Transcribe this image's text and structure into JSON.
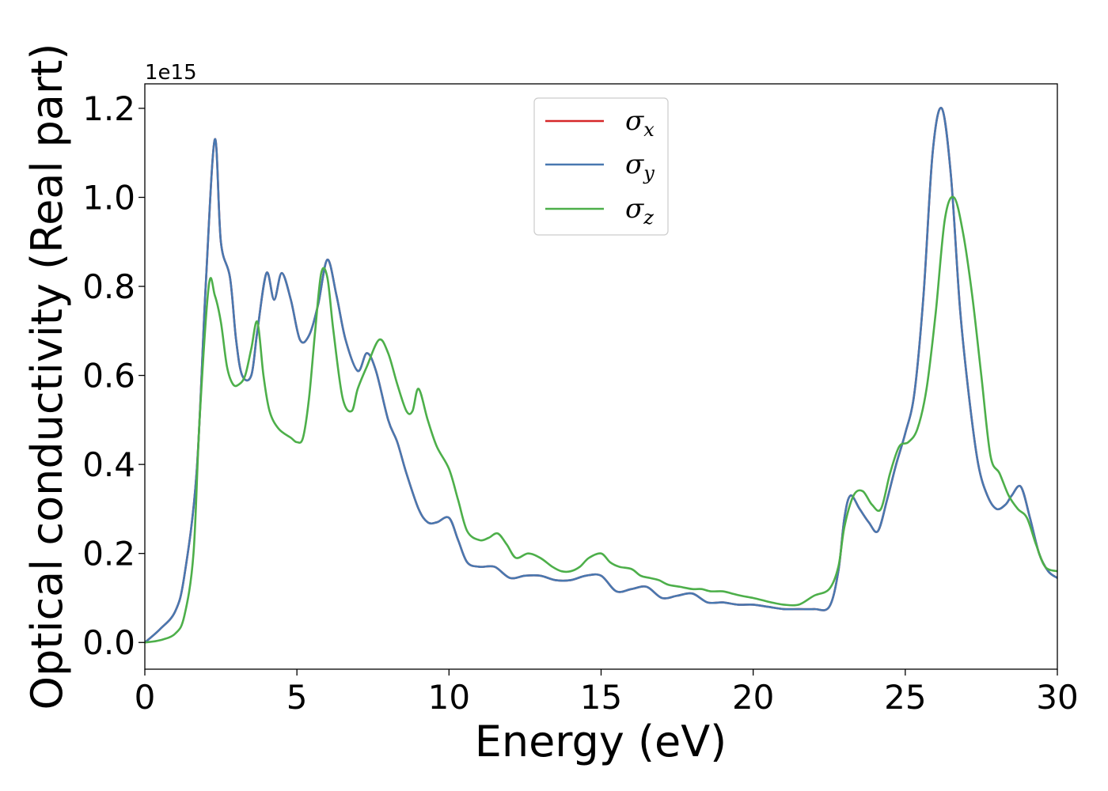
{
  "chart_data": {
    "type": "line",
    "xlabel": "Energy (eV)",
    "ylabel": "Optical conductivity (Real part)",
    "y_offset_label": "1e15",
    "xlim": [
      0,
      30
    ],
    "ylim": [
      -0.06,
      1.255
    ],
    "x_ticks": [
      0,
      5,
      10,
      15,
      20,
      25,
      30
    ],
    "x_tick_labels": [
      "0",
      "5",
      "10",
      "15",
      "20",
      "25",
      "30"
    ],
    "y_ticks": [
      0.0,
      0.2,
      0.4,
      0.6,
      0.8,
      1.0,
      1.2
    ],
    "y_tick_labels": [
      "0.0",
      "0.2",
      "0.4",
      "0.6",
      "0.8",
      "1.0",
      "1.2"
    ],
    "grid": false,
    "legend_position": "top-center",
    "series": [
      {
        "name": "σ_x",
        "symbol": "σ",
        "subscript": "x",
        "color": "#d62728",
        "x": [
          0,
          0.5,
          1.0,
          1.3,
          1.7,
          2.0,
          2.3,
          2.5,
          2.8,
          3.0,
          3.2,
          3.5,
          3.7,
          4.0,
          4.25,
          4.5,
          4.8,
          5.1,
          5.4,
          5.7,
          6.0,
          6.3,
          6.6,
          7.0,
          7.3,
          7.6,
          8.0,
          8.3,
          8.6,
          9.0,
          9.3,
          9.6,
          10.0,
          10.3,
          10.6,
          11.0,
          11.5,
          12.0,
          12.5,
          13.0,
          13.5,
          14.0,
          14.5,
          15.0,
          15.5,
          16.0,
          16.5,
          17.0,
          17.5,
          18.0,
          18.5,
          19.0,
          19.5,
          20.0,
          20.5,
          21.0,
          21.5,
          22.0,
          22.5,
          22.8,
          23.0,
          23.2,
          23.5,
          23.8,
          24.1,
          24.4,
          24.7,
          25.0,
          25.3,
          25.6,
          25.9,
          26.2,
          26.5,
          26.8,
          27.1,
          27.4,
          27.7,
          28.0,
          28.3,
          28.5,
          28.8,
          29.1,
          29.4,
          29.7,
          30.0
        ],
        "y": [
          0.0,
          0.03,
          0.07,
          0.15,
          0.38,
          0.8,
          1.13,
          0.9,
          0.82,
          0.68,
          0.6,
          0.6,
          0.7,
          0.83,
          0.77,
          0.83,
          0.77,
          0.68,
          0.69,
          0.76,
          0.86,
          0.78,
          0.68,
          0.61,
          0.65,
          0.61,
          0.5,
          0.45,
          0.38,
          0.3,
          0.27,
          0.27,
          0.28,
          0.23,
          0.18,
          0.17,
          0.17,
          0.145,
          0.15,
          0.15,
          0.14,
          0.14,
          0.15,
          0.15,
          0.115,
          0.12,
          0.125,
          0.1,
          0.105,
          0.11,
          0.09,
          0.09,
          0.085,
          0.085,
          0.08,
          0.075,
          0.075,
          0.075,
          0.08,
          0.16,
          0.28,
          0.33,
          0.3,
          0.27,
          0.25,
          0.32,
          0.4,
          0.47,
          0.56,
          0.78,
          1.1,
          1.2,
          1.05,
          0.75,
          0.55,
          0.4,
          0.33,
          0.3,
          0.31,
          0.33,
          0.35,
          0.28,
          0.2,
          0.16,
          0.145
        ]
      },
      {
        "name": "σ_y",
        "symbol": "σ",
        "subscript": "y",
        "color": "#4878b0",
        "x": [
          0,
          0.5,
          1.0,
          1.3,
          1.7,
          2.0,
          2.3,
          2.5,
          2.8,
          3.0,
          3.2,
          3.5,
          3.7,
          4.0,
          4.25,
          4.5,
          4.8,
          5.1,
          5.4,
          5.7,
          6.0,
          6.3,
          6.6,
          7.0,
          7.3,
          7.6,
          8.0,
          8.3,
          8.6,
          9.0,
          9.3,
          9.6,
          10.0,
          10.3,
          10.6,
          11.0,
          11.5,
          12.0,
          12.5,
          13.0,
          13.5,
          14.0,
          14.5,
          15.0,
          15.5,
          16.0,
          16.5,
          17.0,
          17.5,
          18.0,
          18.5,
          19.0,
          19.5,
          20.0,
          20.5,
          21.0,
          21.5,
          22.0,
          22.5,
          22.8,
          23.0,
          23.2,
          23.5,
          23.8,
          24.1,
          24.4,
          24.7,
          25.0,
          25.3,
          25.6,
          25.9,
          26.2,
          26.5,
          26.8,
          27.1,
          27.4,
          27.7,
          28.0,
          28.3,
          28.5,
          28.8,
          29.1,
          29.4,
          29.7,
          30.0
        ],
        "y": [
          0.0,
          0.03,
          0.07,
          0.15,
          0.38,
          0.8,
          1.13,
          0.9,
          0.82,
          0.68,
          0.6,
          0.6,
          0.7,
          0.83,
          0.77,
          0.83,
          0.77,
          0.68,
          0.69,
          0.76,
          0.86,
          0.78,
          0.68,
          0.61,
          0.65,
          0.61,
          0.5,
          0.45,
          0.38,
          0.3,
          0.27,
          0.27,
          0.28,
          0.23,
          0.18,
          0.17,
          0.17,
          0.145,
          0.15,
          0.15,
          0.14,
          0.14,
          0.15,
          0.15,
          0.115,
          0.12,
          0.125,
          0.1,
          0.105,
          0.11,
          0.09,
          0.09,
          0.085,
          0.085,
          0.08,
          0.075,
          0.075,
          0.075,
          0.08,
          0.16,
          0.28,
          0.33,
          0.3,
          0.27,
          0.25,
          0.32,
          0.4,
          0.47,
          0.56,
          0.78,
          1.1,
          1.2,
          1.05,
          0.75,
          0.55,
          0.4,
          0.33,
          0.3,
          0.31,
          0.33,
          0.35,
          0.28,
          0.2,
          0.16,
          0.145
        ]
      },
      {
        "name": "σ_z",
        "symbol": "σ",
        "subscript": "z",
        "color": "#4daf4a",
        "x": [
          0,
          0.5,
          1.0,
          1.3,
          1.6,
          1.8,
          2.1,
          2.3,
          2.5,
          2.7,
          2.9,
          3.1,
          3.3,
          3.5,
          3.7,
          3.9,
          4.1,
          4.4,
          4.8,
          5.0,
          5.2,
          5.4,
          5.6,
          5.8,
          6.0,
          6.2,
          6.5,
          6.8,
          7.0,
          7.3,
          7.7,
          8.0,
          8.3,
          8.6,
          8.8,
          9.0,
          9.3,
          9.6,
          10.0,
          10.3,
          10.6,
          11.0,
          11.3,
          11.6,
          11.9,
          12.2,
          12.6,
          13.0,
          13.4,
          13.7,
          14.0,
          14.3,
          14.6,
          15.0,
          15.3,
          15.6,
          16.0,
          16.3,
          16.6,
          16.9,
          17.2,
          17.6,
          18.0,
          18.3,
          18.6,
          19.0,
          19.3,
          19.6,
          20.0,
          20.3,
          20.6,
          21.0,
          21.5,
          22.0,
          22.5,
          22.8,
          23.0,
          23.3,
          23.6,
          23.9,
          24.2,
          24.5,
          24.8,
          25.1,
          25.4,
          25.7,
          26.0,
          26.3,
          26.6,
          26.9,
          27.2,
          27.5,
          27.8,
          28.1,
          28.4,
          28.7,
          29.0,
          29.3,
          29.6,
          30.0
        ],
        "y": [
          0.0,
          0.005,
          0.02,
          0.06,
          0.2,
          0.5,
          0.8,
          0.78,
          0.72,
          0.62,
          0.58,
          0.58,
          0.6,
          0.66,
          0.72,
          0.6,
          0.52,
          0.48,
          0.46,
          0.45,
          0.46,
          0.55,
          0.7,
          0.83,
          0.82,
          0.7,
          0.55,
          0.52,
          0.57,
          0.62,
          0.68,
          0.65,
          0.58,
          0.52,
          0.52,
          0.57,
          0.5,
          0.44,
          0.39,
          0.32,
          0.25,
          0.23,
          0.235,
          0.245,
          0.22,
          0.19,
          0.2,
          0.19,
          0.17,
          0.16,
          0.16,
          0.17,
          0.19,
          0.2,
          0.18,
          0.17,
          0.165,
          0.15,
          0.145,
          0.14,
          0.13,
          0.125,
          0.12,
          0.12,
          0.115,
          0.115,
          0.11,
          0.105,
          0.1,
          0.095,
          0.09,
          0.085,
          0.085,
          0.105,
          0.12,
          0.17,
          0.26,
          0.33,
          0.34,
          0.31,
          0.3,
          0.38,
          0.44,
          0.45,
          0.48,
          0.57,
          0.74,
          0.95,
          1.0,
          0.92,
          0.78,
          0.6,
          0.42,
          0.38,
          0.33,
          0.3,
          0.28,
          0.22,
          0.17,
          0.16
        ]
      }
    ]
  }
}
